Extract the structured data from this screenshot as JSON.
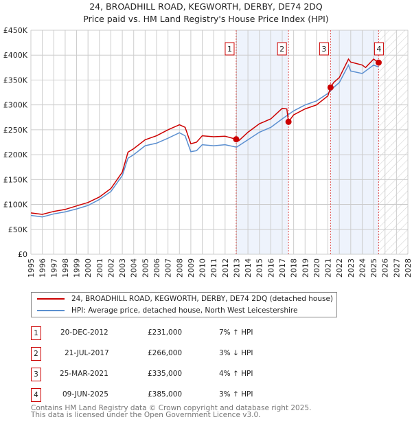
{
  "chart_data": {
    "type": "line",
    "title": "24, BROADHILL ROAD, KEGWORTH, DERBY, DE74 2DQ",
    "subtitle": "Price paid vs. HM Land Registry's House Price Index (HPI)",
    "xlim": [
      1995,
      2028
    ],
    "ylim": [
      0,
      450000
    ],
    "x_ticks": [
      "1995",
      "1996",
      "1997",
      "1998",
      "1999",
      "2000",
      "2001",
      "2002",
      "2003",
      "2004",
      "2005",
      "2006",
      "2007",
      "2008",
      "2009",
      "2010",
      "2011",
      "2012",
      "2013",
      "2014",
      "2015",
      "2016",
      "2017",
      "2018",
      "2019",
      "2020",
      "2021",
      "2022",
      "2023",
      "2024",
      "2025",
      "2026",
      "2027",
      "2028"
    ],
    "y_ticks": [
      {
        "v": 0,
        "label": "£0"
      },
      {
        "v": 50000,
        "label": "£50K"
      },
      {
        "v": 100000,
        "label": "£100K"
      },
      {
        "v": 150000,
        "label": "£150K"
      },
      {
        "v": 200000,
        "label": "£200K"
      },
      {
        "v": 250000,
        "label": "£250K"
      },
      {
        "v": 300000,
        "label": "£300K"
      },
      {
        "v": 350000,
        "label": "£350K"
      },
      {
        "v": 400000,
        "label": "£400K"
      },
      {
        "v": 450000,
        "label": "£450K"
      }
    ],
    "grid": true,
    "series": [
      {
        "name": "24, BROADHILL ROAD, KEGWORTH, DERBY, DE74 2DQ (detached house)",
        "color": "#cc0000",
        "x": [
          1995,
          1996,
          1997,
          1998,
          1999,
          2000,
          2001,
          2002,
          2003,
          2003.5,
          2004,
          2005,
          2006,
          2007,
          2008,
          2008.5,
          2009,
          2009.5,
          2010,
          2011,
          2012,
          2012.97,
          2013.2,
          2014,
          2015,
          2016,
          2017,
          2017.4,
          2017.55,
          2018,
          2019,
          2020,
          2021,
          2021.23,
          2021.5,
          2022,
          2022.8,
          2023,
          2024,
          2024.3,
          2025,
          2025.44
        ],
        "y": [
          83000,
          80000,
          86000,
          90000,
          97000,
          104000,
          115000,
          132000,
          165000,
          205000,
          212000,
          230000,
          238000,
          250000,
          260000,
          255000,
          222000,
          225000,
          238000,
          236000,
          237000,
          231000,
          228000,
          245000,
          262000,
          272000,
          293000,
          292000,
          266000,
          280000,
          292000,
          300000,
          318000,
          335000,
          345000,
          355000,
          392000,
          386000,
          380000,
          375000,
          392000,
          385000
        ]
      },
      {
        "name": "HPI: Average price, detached house, North West Leicestershire",
        "color": "#5b8fd0",
        "x": [
          1995,
          1996,
          1997,
          1998,
          1999,
          2000,
          2001,
          2002,
          2003,
          2003.5,
          2004,
          2005,
          2006,
          2007,
          2008,
          2008.5,
          2009,
          2009.5,
          2010,
          2011,
          2012,
          2013,
          2014,
          2015,
          2016,
          2017,
          2018,
          2019,
          2020,
          2021,
          2021.5,
          2022,
          2022.8,
          2023,
          2024,
          2025,
          2025.44
        ],
        "y": [
          78000,
          75000,
          81000,
          85000,
          91000,
          98000,
          110000,
          126000,
          158000,
          193000,
          200000,
          218000,
          223000,
          233000,
          244000,
          238000,
          206000,
          208000,
          220000,
          218000,
          220000,
          215000,
          230000,
          245000,
          255000,
          272000,
          288000,
          300000,
          308000,
          323000,
          335000,
          345000,
          380000,
          368000,
          363000,
          380000,
          376000
        ]
      }
    ],
    "sales": [
      {
        "n": "1",
        "x": 2012.97,
        "y": 231000,
        "date": "20-DEC-2012",
        "price": "£231,000",
        "hpi": "7% ↑ HPI"
      },
      {
        "n": "2",
        "x": 2017.55,
        "y": 266000,
        "date": "21-JUL-2017",
        "price": "£266,000",
        "hpi": "3% ↓ HPI"
      },
      {
        "n": "3",
        "x": 2021.23,
        "y": 335000,
        "date": "25-MAR-2021",
        "price": "£335,000",
        "hpi": "4% ↑ HPI"
      },
      {
        "n": "4",
        "x": 2025.44,
        "y": 385000,
        "date": "09-JUN-2025",
        "price": "£385,000",
        "hpi": "3% ↑ HPI"
      }
    ],
    "shaded_ranges": [
      [
        2012.97,
        2017.55
      ],
      [
        2021.23,
        2025.44
      ]
    ],
    "forecast_from": 2025.44,
    "legend_position": "below"
  },
  "footer": {
    "line1": "Contains HM Land Registry data © Crown copyright and database right 2025.",
    "line2": "This data is licensed under the Open Government Licence v3.0."
  }
}
